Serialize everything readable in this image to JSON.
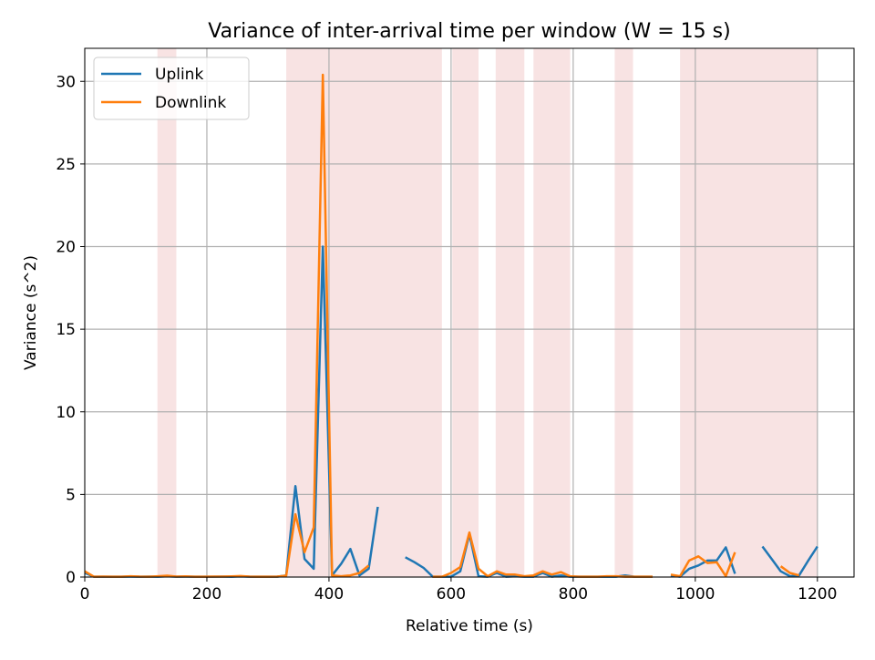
{
  "chart_data": {
    "type": "line",
    "title": "Variance of inter-arrival time per window (W = 15 s)",
    "xlabel": "Relative time (s)",
    "ylabel": "Variance (s^2)",
    "xlim": [
      0,
      1260
    ],
    "ylim": [
      0,
      32
    ],
    "xticks": [
      0,
      200,
      400,
      600,
      800,
      1000,
      1200
    ],
    "yticks": [
      0,
      5,
      10,
      15,
      20,
      25,
      30
    ],
    "grid": true,
    "legend_position": "top-left",
    "shaded_intervals": [
      [
        119,
        150
      ],
      [
        330,
        585
      ],
      [
        602,
        645
      ],
      [
        673,
        720
      ],
      [
        735,
        795
      ],
      [
        868,
        898
      ],
      [
        975,
        1200
      ]
    ],
    "shade_color": "#f8e3e3",
    "series": [
      {
        "name": "Uplink",
        "color": "#1f77b4",
        "x": [
          0,
          15,
          30,
          45,
          60,
          75,
          90,
          105,
          120,
          135,
          150,
          165,
          180,
          195,
          210,
          225,
          240,
          255,
          270,
          285,
          300,
          315,
          330,
          345,
          360,
          375,
          390,
          405,
          420,
          435,
          450,
          465,
          480,
          null,
          525,
          540,
          555,
          570,
          585,
          600,
          615,
          630,
          645,
          660,
          675,
          690,
          705,
          720,
          735,
          750,
          765,
          780,
          795,
          810,
          825,
          840,
          855,
          870,
          885,
          900,
          915,
          930,
          null,
          960,
          975,
          990,
          1005,
          1020,
          1035,
          1050,
          1065,
          null,
          1110,
          1125,
          1140,
          1155,
          1170,
          1185,
          1200
        ],
        "y": [
          0.25,
          0.02,
          0.02,
          0.02,
          0.02,
          0.03,
          0.02,
          0.03,
          0.02,
          0.05,
          0.02,
          0.03,
          0.02,
          0.02,
          0.02,
          0.03,
          0.02,
          0.04,
          0.02,
          0.02,
          0.02,
          0.02,
          0.1,
          5.5,
          1.1,
          0.5,
          20.0,
          0.1,
          0.8,
          1.7,
          0.1,
          0.5,
          4.25,
          null,
          1.2,
          0.9,
          0.55,
          0.02,
          0.02,
          0.02,
          0.35,
          2.6,
          0.05,
          0.02,
          0.25,
          0.02,
          0.05,
          0.02,
          0.02,
          0.25,
          0.02,
          0.1,
          0.02,
          0.02,
          0.02,
          0.02,
          0.02,
          0.02,
          0.1,
          0.02,
          0.02,
          0.02,
          null,
          0.1,
          0.02,
          0.5,
          0.7,
          1.0,
          1.0,
          1.8,
          0.2,
          null,
          1.85,
          1.1,
          0.35,
          0.05,
          0.1,
          1.0,
          1.85
        ]
      },
      {
        "name": "Downlink",
        "color": "#ff7f0e",
        "x": [
          0,
          15,
          30,
          45,
          60,
          75,
          90,
          105,
          120,
          135,
          150,
          165,
          180,
          195,
          210,
          225,
          240,
          255,
          270,
          285,
          300,
          315,
          330,
          345,
          360,
          375,
          390,
          405,
          420,
          435,
          450,
          465,
          null,
          570,
          585,
          600,
          615,
          630,
          645,
          660,
          675,
          690,
          705,
          720,
          735,
          750,
          765,
          780,
          795,
          810,
          825,
          840,
          855,
          870,
          885,
          900,
          915,
          930,
          null,
          960,
          975,
          990,
          1005,
          1020,
          1035,
          1050,
          1065,
          null,
          1140,
          1155,
          1170
        ],
        "y": [
          0.35,
          0.02,
          0.03,
          0.02,
          0.02,
          0.05,
          0.03,
          0.02,
          0.05,
          0.08,
          0.03,
          0.04,
          0.02,
          0.02,
          0.03,
          0.03,
          0.04,
          0.06,
          0.03,
          0.02,
          0.02,
          0.03,
          0.08,
          3.8,
          1.5,
          3.0,
          30.4,
          0.1,
          0.05,
          0.1,
          0.25,
          0.7,
          null,
          0.02,
          0.02,
          0.25,
          0.6,
          2.7,
          0.5,
          0.05,
          0.35,
          0.15,
          0.15,
          0.05,
          0.1,
          0.35,
          0.15,
          0.3,
          0.05,
          0.02,
          0.02,
          0.02,
          0.05,
          0.05,
          0.02,
          0.02,
          0.02,
          0.02,
          null,
          0.15,
          0.05,
          1.0,
          1.25,
          0.85,
          0.9,
          0.05,
          1.5,
          null,
          0.65,
          0.25,
          0.1
        ]
      }
    ]
  }
}
